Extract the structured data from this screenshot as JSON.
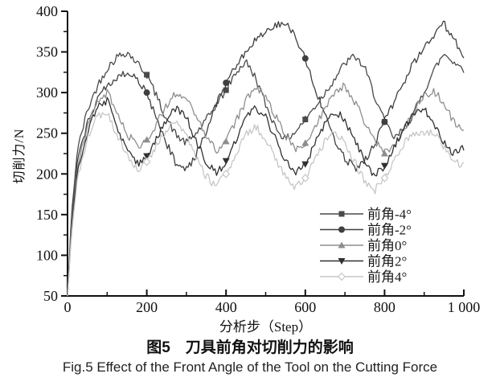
{
  "figure": {
    "ylabel": "切削力/N",
    "xlabel": "分析步（Step）",
    "caption_zh": "图5　刀具前角对切削力的影响",
    "caption_en": "Fig.5  Effect of the Front Angle of the Tool on the Cutting Force"
  },
  "chart_data": {
    "type": "line",
    "title": "图5 刀具前角对切削力的影响",
    "xlabel": "分析步（Step）",
    "ylabel": "切削力/N",
    "xlim": [
      0,
      1000
    ],
    "ylim": [
      50,
      400
    ],
    "grid": false,
    "legend_position": "inside-right-lower",
    "axis_color": "#111111",
    "x_major_ticks": [
      0,
      200,
      400,
      600,
      800,
      1000
    ],
    "x_tick_labels": [
      "0",
      "200",
      "400",
      "600",
      "800",
      "1 000"
    ],
    "x_minor_ticks": [
      100,
      300,
      500,
      700,
      900
    ],
    "y_major_ticks": [
      50,
      100,
      150,
      200,
      250,
      300,
      350,
      400
    ],
    "y_tick_labels": [
      "50",
      "100",
      "150",
      "200",
      "250",
      "300",
      "350",
      "400"
    ],
    "y_minor_ticks": [
      75,
      125,
      175,
      225,
      275,
      325,
      375
    ],
    "marker_steps": [
      200,
      400,
      600,
      800
    ],
    "x": [
      0,
      10,
      25,
      50,
      75,
      100,
      125,
      150,
      175,
      200,
      225,
      250,
      275,
      300,
      325,
      350,
      375,
      400,
      425,
      450,
      475,
      500,
      525,
      550,
      575,
      600,
      625,
      650,
      675,
      700,
      725,
      750,
      775,
      800,
      825,
      850,
      875,
      900,
      925,
      950,
      975,
      1000
    ],
    "series": [
      {
        "id": "rake-minus4",
        "name": "前角-4°",
        "marker": "square",
        "color": "#4a4a4a",
        "values": [
          50,
          150,
          230,
          278,
          308,
          330,
          344,
          350,
          337,
          322,
          295,
          268,
          247,
          238,
          250,
          266,
          285,
          303,
          325,
          338,
          318,
          285,
          258,
          242,
          252,
          267,
          283,
          300,
          318,
          336,
          345,
          330,
          296,
          264,
          243,
          256,
          276,
          302,
          328,
          348,
          338,
          328
        ]
      },
      {
        "id": "rake-minus2",
        "name": "前角-2°",
        "marker": "circle",
        "color": "#3f3f3f",
        "values": [
          50,
          140,
          215,
          262,
          292,
          310,
          320,
          323,
          316,
          300,
          268,
          238,
          212,
          205,
          224,
          252,
          284,
          312,
          334,
          350,
          364,
          375,
          382,
          385,
          370,
          342,
          305,
          270,
          242,
          220,
          207,
          216,
          238,
          264,
          290,
          314,
          338,
          356,
          372,
          384,
          368,
          338
        ]
      },
      {
        "id": "rake-0",
        "name": "前角0°",
        "marker": "triangle-up",
        "color": "#8e8e8e",
        "values": [
          50,
          135,
          210,
          258,
          290,
          300,
          276,
          250,
          234,
          242,
          262,
          285,
          300,
          294,
          270,
          246,
          228,
          240,
          265,
          290,
          308,
          297,
          271,
          247,
          230,
          238,
          258,
          280,
          300,
          308,
          289,
          264,
          241,
          225,
          236,
          256,
          278,
          296,
          302,
          287,
          264,
          252
        ]
      },
      {
        "id": "rake-2",
        "name": "前角2°",
        "marker": "triangle-down",
        "color": "#303030",
        "values": [
          50,
          130,
          205,
          252,
          282,
          290,
          260,
          227,
          212,
          222,
          245,
          268,
          282,
          269,
          241,
          214,
          200,
          216,
          242,
          268,
          282,
          269,
          244,
          217,
          200,
          212,
          238,
          262,
          278,
          267,
          241,
          214,
          198,
          210,
          235,
          258,
          275,
          282,
          261,
          237,
          224,
          232
        ]
      },
      {
        "id": "rake-4",
        "name": "前角4°",
        "marker": "diamond-open",
        "color": "#c6c6c6",
        "values": [
          50,
          125,
          195,
          242,
          270,
          275,
          248,
          221,
          205,
          215,
          235,
          255,
          262,
          247,
          221,
          197,
          185,
          200,
          225,
          248,
          258,
          244,
          219,
          195,
          182,
          195,
          218,
          240,
          250,
          239,
          214,
          191,
          180,
          195,
          218,
          240,
          250,
          250,
          250,
          234,
          214,
          210
        ]
      }
    ]
  }
}
